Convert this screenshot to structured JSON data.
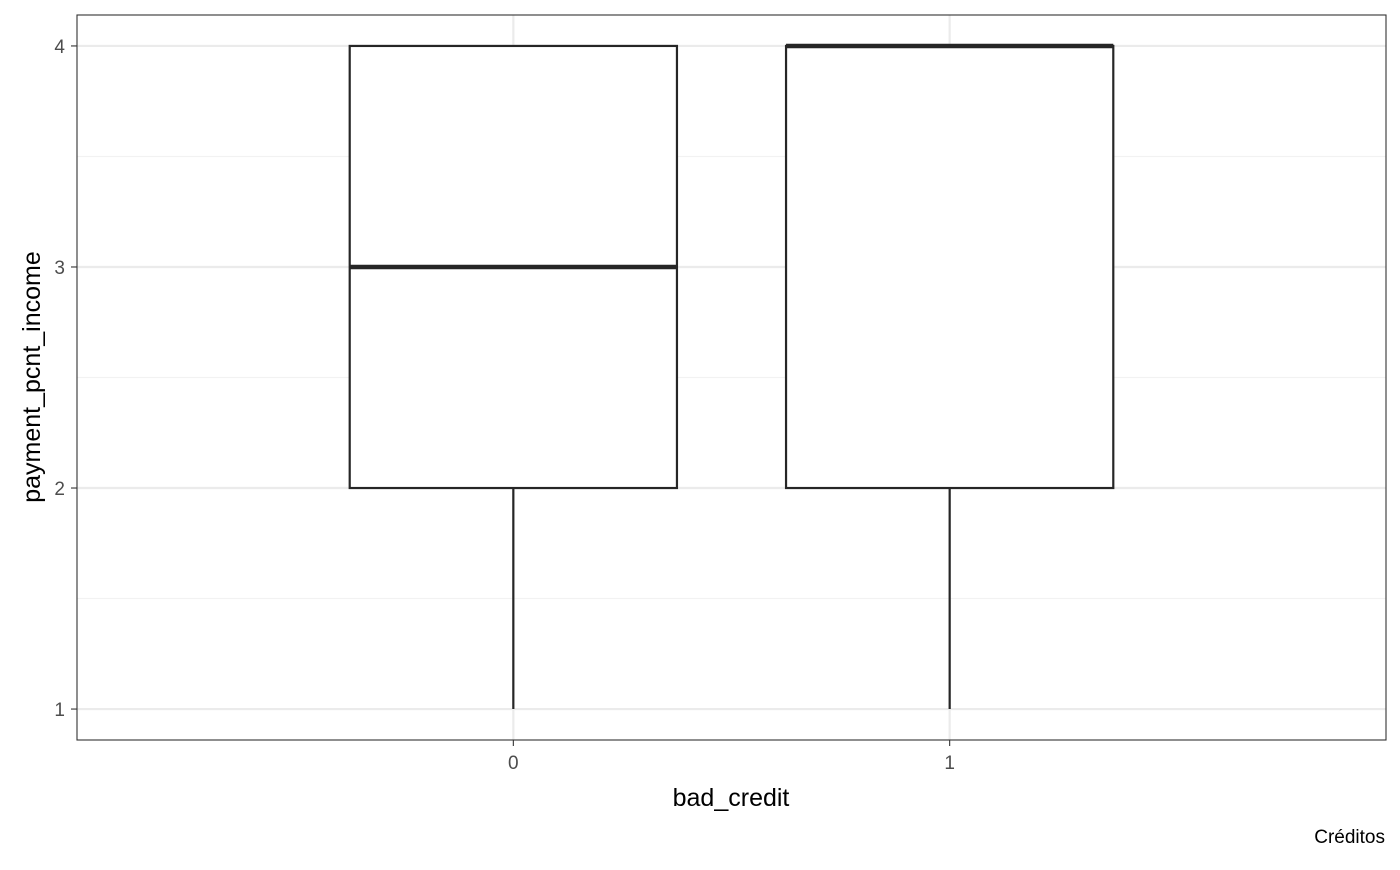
{
  "chart_data": {
    "type": "boxplot",
    "title": "",
    "xlabel": "bad_credit",
    "ylabel": "payment_pcnt_income",
    "caption": "Créditos",
    "categories": [
      "0",
      "1"
    ],
    "boxes": [
      {
        "category": "0",
        "min": 1,
        "q1": 2,
        "median": 3,
        "q3": 4,
        "max": 4
      },
      {
        "category": "1",
        "min": 1,
        "q1": 2,
        "median": 4,
        "q3": 4,
        "max": 4
      }
    ],
    "ylim": [
      0.86,
      4.14
    ],
    "yticks": [
      1,
      2,
      3,
      4
    ],
    "y_minor_ticks": [
      1.5,
      2.5,
      3.5
    ],
    "grid": true,
    "legend": "none",
    "theme": "bw",
    "colors": {
      "box_fill": "#ffffff",
      "box_stroke": "#262626",
      "grid_major": "#ebebeb",
      "grid_minor": "#f2f2f2",
      "panel_border": "#333333",
      "tick_text": "#4d4d4d"
    }
  }
}
